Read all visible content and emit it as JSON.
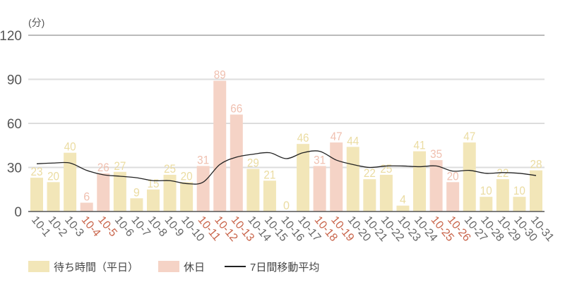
{
  "chart_data": {
    "type": "bar",
    "title": "",
    "ylabel": "(分)",
    "xlabel": "",
    "ylim": [
      0,
      120
    ],
    "yticks": [
      0,
      30,
      60,
      90,
      120
    ],
    "grid": true,
    "legend_position": "bottom-left",
    "categories": [
      "10-1",
      "10-2",
      "10-3",
      "10-4",
      "10-5",
      "10-6",
      "10-7",
      "10-8",
      "10-9",
      "10-10",
      "10-11",
      "10-12",
      "10-13",
      "10-14",
      "10-15",
      "10-16",
      "10-17",
      "10-18",
      "10-19",
      "10-20",
      "10-21",
      "10-22",
      "10-23",
      "10-24",
      "10-25",
      "10-26",
      "10-27",
      "10-28",
      "10-29",
      "10-30",
      "10-31"
    ],
    "holidays": [
      "10-4",
      "10-5",
      "10-11",
      "10-12",
      "10-13",
      "10-18",
      "10-19",
      "10-25",
      "10-26"
    ],
    "series": [
      {
        "name": "待ち時間（平日）/ 休日",
        "type": "bar",
        "values": [
          23,
          20,
          40,
          6,
          26,
          27,
          9,
          15,
          25,
          20,
          31,
          89,
          66,
          29,
          21,
          0,
          46,
          31,
          47,
          44,
          22,
          25,
          4,
          41,
          35,
          20,
          47,
          10,
          22,
          10,
          28
        ]
      },
      {
        "name": "7日間移動平均",
        "type": "line",
        "values": [
          32.5,
          33,
          33,
          28,
          25,
          24,
          23,
          21,
          21,
          19,
          20,
          32,
          37,
          39,
          40,
          36,
          40,
          41,
          35,
          32,
          30,
          31,
          31,
          30.5,
          31,
          27.5,
          28,
          26,
          26.5,
          26,
          24.5
        ]
      }
    ]
  },
  "legend": {
    "weekday_label": "待ち時間（平日）",
    "holiday_label": "休日",
    "avg_label": "7日間移動平均"
  },
  "colors": {
    "weekday_bar": "#F2E6B8",
    "weekday_text": "#EBDCA2",
    "holiday_bar": "#F5D3C6",
    "holiday_text": "#F0C0B0",
    "holiday_axis_label": "#C8644A",
    "weekday_axis_label": "#666666",
    "avg_line": "#222222",
    "grid": "#DDDDDD",
    "axis": "#555555"
  }
}
